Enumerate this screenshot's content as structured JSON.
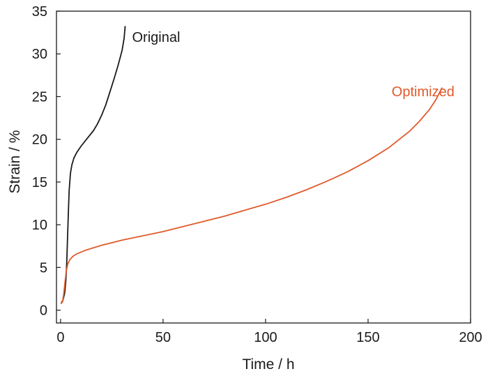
{
  "chart_data": {
    "type": "line",
    "title": "",
    "xlabel": "Time / h",
    "ylabel": "Strain / %",
    "xlim": [
      -2,
      200
    ],
    "ylim": [
      -1.5,
      35
    ],
    "xticks": [
      0,
      50,
      100,
      150,
      200
    ],
    "yticks": [
      0,
      5,
      10,
      15,
      20,
      25,
      30,
      35
    ],
    "grid": false,
    "legend": "inline labels",
    "series": [
      {
        "name": "Original",
        "color": "#1a1a1a",
        "x": [
          0.3,
          1.2,
          2.0,
          2.6,
          3.0,
          3.4,
          3.8,
          4.2,
          4.8,
          5.5,
          6.5,
          8,
          10,
          12,
          14,
          16,
          18,
          20,
          22,
          24,
          26,
          28,
          30,
          31,
          31.5
        ],
        "y": [
          0.8,
          1.2,
          2.0,
          3.5,
          5.5,
          8.5,
          11.5,
          14.0,
          16.0,
          17.0,
          17.8,
          18.5,
          19.2,
          19.8,
          20.4,
          21.0,
          21.8,
          22.8,
          24.0,
          25.5,
          27.0,
          28.6,
          30.4,
          31.8,
          33.2
        ]
      },
      {
        "name": "Optimized",
        "color": "#e05a2b",
        "x": [
          0.3,
          1.0,
          1.6,
          2.2,
          2.8,
          3.5,
          4.5,
          6,
          8,
          12,
          20,
          30,
          40,
          50,
          60,
          70,
          80,
          90,
          100,
          110,
          120,
          130,
          140,
          150,
          160,
          170,
          175,
          180,
          183,
          186
        ],
        "y": [
          0.8,
          1.0,
          2.0,
          3.4,
          4.6,
          5.4,
          5.9,
          6.3,
          6.6,
          7.0,
          7.6,
          8.2,
          8.7,
          9.2,
          9.8,
          10.4,
          11.0,
          11.7,
          12.4,
          13.2,
          14.1,
          15.1,
          16.2,
          17.5,
          19.0,
          20.9,
          22.1,
          23.5,
          24.6,
          26.0
        ]
      }
    ]
  }
}
